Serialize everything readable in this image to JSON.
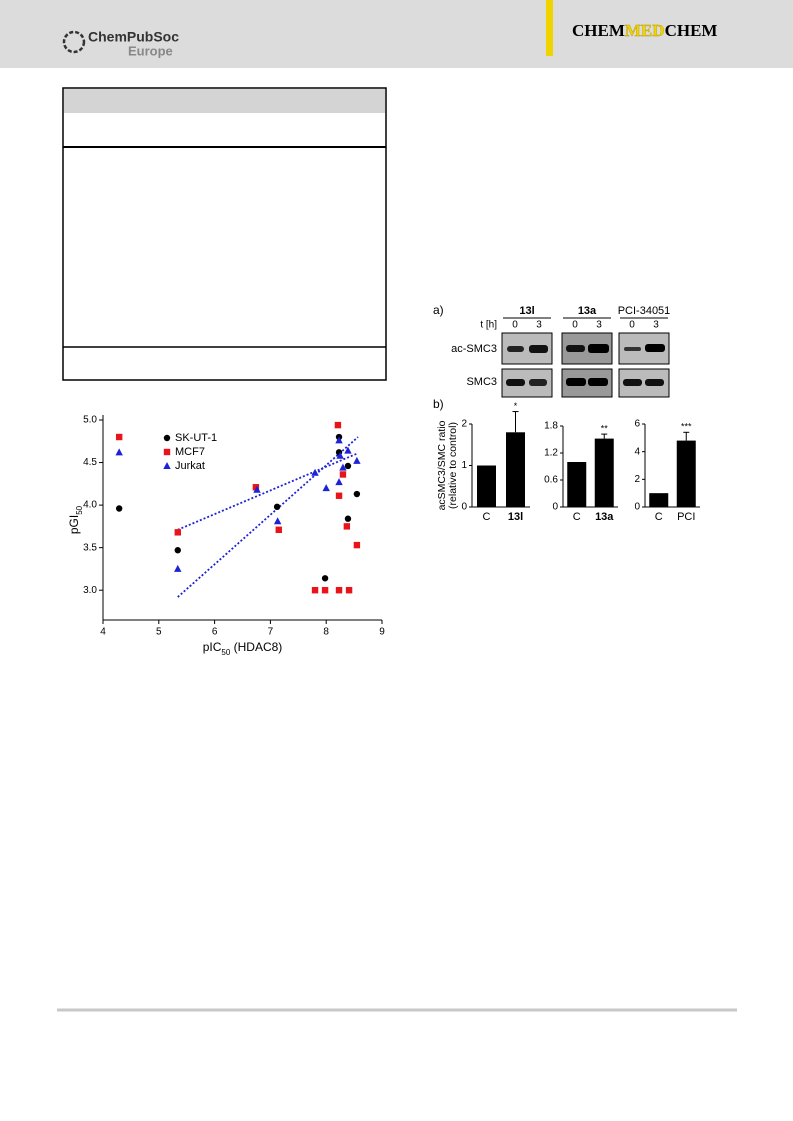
{
  "header": {
    "publisher": "ChemPubSoc",
    "publisher_region": "Europe",
    "journal": [
      "CHEM",
      "MED",
      "CHEM"
    ]
  },
  "blot": {
    "panel_a": "a)",
    "panel_b": "b)",
    "time_label": "t [h]",
    "compounds": [
      {
        "name": "13l",
        "times": [
          "0",
          "3"
        ]
      },
      {
        "name": "13a",
        "times": [
          "0",
          "3"
        ]
      },
      {
        "name": "PCI-34051",
        "times": [
          "0",
          "3"
        ]
      }
    ],
    "rows": [
      "ac-SMC3",
      "SMC3"
    ]
  },
  "chart_data": [
    {
      "type": "scatter",
      "ylabel": [
        "pGI",
        "50"
      ],
      "xlabel": [
        "pIC",
        "50",
        " (HDAC8)"
      ],
      "xlim": [
        4,
        9
      ],
      "xticks": [
        4,
        5,
        6,
        7,
        8,
        9
      ],
      "ylim": [
        2.65,
        5.0
      ],
      "yticks": [
        {
          "value": 3,
          "label": "3.0"
        },
        {
          "value": 3.5,
          "label": "3.5"
        },
        {
          "value": 4,
          "label": "4.0"
        },
        {
          "value": 4.5,
          "label": "4.5"
        },
        {
          "value": 5,
          "label": "5.0"
        }
      ],
      "series": [
        {
          "name": "SK-UT-1",
          "color": "#000000",
          "marker": "circle",
          "x": [
            4.29,
            5.34,
            7.12,
            7.98,
            8.23,
            8.23,
            8.39,
            8.39,
            8.55
          ],
          "values": [
            3.96,
            3.47,
            3.98,
            3.14,
            4.62,
            4.8,
            4.46,
            3.84,
            4.13
          ]
        },
        {
          "name": "MCF7",
          "color": "#e8141a",
          "marker": "square",
          "x": [
            4.29,
            5.34,
            6.74,
            7.15,
            7.8,
            7.98,
            8.21,
            8.23,
            8.23,
            8.3,
            8.37,
            8.41,
            8.55
          ],
          "values": [
            4.8,
            3.68,
            4.21,
            3.71,
            3.0,
            3.0,
            4.94,
            4.11,
            3.0,
            4.36,
            3.75,
            3.0,
            3.53
          ]
        },
        {
          "name": "Jurkat",
          "color": "#1c22d6",
          "marker": "triangle",
          "x": [
            4.29,
            5.34,
            6.76,
            7.13,
            7.8,
            8.0,
            8.23,
            8.25,
            8.3,
            8.39,
            8.55,
            8.23
          ],
          "values": [
            4.62,
            3.25,
            4.18,
            3.81,
            4.38,
            4.2,
            4.76,
            4.58,
            4.44,
            4.64,
            4.52,
            4.27
          ]
        }
      ],
      "trend_lines": [
        {
          "color": "#1c22d6",
          "x": [
            5.34,
            8.57
          ],
          "values": [
            3.71,
            4.61
          ]
        },
        {
          "color": "#1c22d6",
          "x": [
            5.34,
            8.57
          ],
          "values": [
            2.92,
            4.8
          ]
        }
      ]
    },
    {
      "type": "bar",
      "ylabel": [
        "acSMC3/SMC ratio",
        "(relative to control)"
      ],
      "ylim": [
        0,
        2
      ],
      "yticks": [
        0,
        1,
        2
      ],
      "categories": [
        "C",
        "13l"
      ],
      "values": [
        1,
        1.8
      ],
      "errors": [
        null,
        0.5
      ],
      "significance": [
        null,
        "*"
      ],
      "color": "#000000"
    },
    {
      "type": "bar",
      "ylim": [
        0,
        1.8
      ],
      "yticks": [
        0,
        0.6,
        1.2,
        1.8
      ],
      "categories": [
        "C",
        "13a"
      ],
      "values": [
        1,
        1.52
      ],
      "errors": [
        null,
        0.1
      ],
      "significance": [
        null,
        "**"
      ],
      "color": "#000000"
    },
    {
      "type": "bar",
      "ylim": [
        0,
        6
      ],
      "yticks": [
        0,
        2,
        4,
        6
      ],
      "categories": [
        "C",
        "PCI"
      ],
      "values": [
        1,
        4.8
      ],
      "errors": [
        null,
        0.6
      ],
      "significance": [
        null,
        "***"
      ],
      "color": "#000000"
    }
  ]
}
